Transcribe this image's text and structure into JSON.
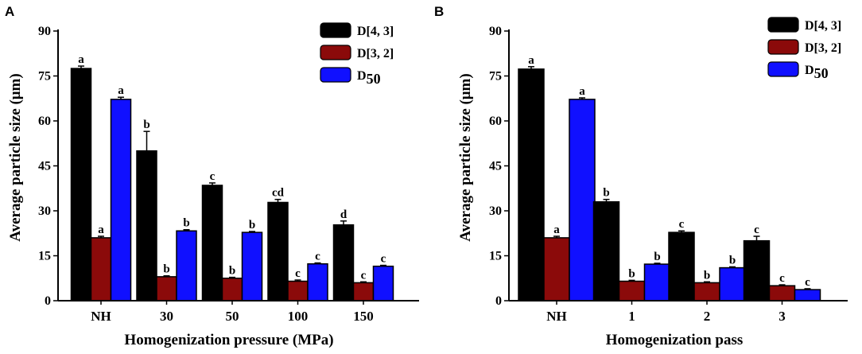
{
  "chart_data": [
    {
      "type": "bar",
      "panel": "A",
      "categories": [
        "NH",
        "30",
        "50",
        "100",
        "150"
      ],
      "series": [
        {
          "name": "D[4, 3]",
          "color": "#000000",
          "values": [
            77.5,
            50.0,
            38.5,
            32.8,
            25.3
          ],
          "errors": [
            0.8,
            6.5,
            0.8,
            1.0,
            1.3
          ],
          "letters": [
            "a",
            "b",
            "c",
            "cd",
            "d"
          ]
        },
        {
          "name": "D[3, 2]",
          "color": "#8b0a0a",
          "values": [
            21.0,
            8.0,
            7.5,
            6.5,
            6.0
          ],
          "errors": [
            0.5,
            0.3,
            0.3,
            0.4,
            0.3
          ],
          "letters": [
            "a",
            "b",
            "b",
            "c",
            "c"
          ]
        },
        {
          "name": "D50",
          "color": "#1010ff",
          "values": [
            67.2,
            23.3,
            22.8,
            12.3,
            11.5
          ],
          "errors": [
            0.7,
            0.4,
            0.3,
            0.3,
            0.3
          ],
          "letters": [
            "a",
            "b",
            "b",
            "c",
            "c"
          ]
        }
      ],
      "legend_names": [
        {
          "main": "D[4, 3]",
          "sub": ""
        },
        {
          "main": "D[3, 2]",
          "sub": ""
        },
        {
          "main": "D",
          "sub": "50"
        }
      ],
      "title": "",
      "xlabel": "Homogenization pressure (MPa)",
      "ylabel": "Average particle size (μm)",
      "ylim": [
        0,
        90
      ],
      "yticks": [
        "0",
        "15",
        "30",
        "45",
        "60",
        "75",
        "90"
      ],
      "legend_position": "top-right"
    },
    {
      "type": "bar",
      "panel": "B",
      "categories": [
        "NH",
        "1",
        "2",
        "3"
      ],
      "series": [
        {
          "name": "D[4, 3]",
          "color": "#000000",
          "values": [
            77.3,
            33.0,
            22.8,
            20.0
          ],
          "errors": [
            0.8,
            0.8,
            0.5,
            1.5
          ],
          "letters": [
            "a",
            "b",
            "c",
            "c"
          ]
        },
        {
          "name": "D[3, 2]",
          "color": "#8b0a0a",
          "values": [
            21.0,
            6.5,
            6.0,
            5.0
          ],
          "errors": [
            0.5,
            0.3,
            0.3,
            0.3
          ],
          "letters": [
            "a",
            "b",
            "b",
            "c"
          ]
        },
        {
          "name": "D50",
          "color": "#1010ff",
          "values": [
            67.2,
            12.2,
            11.0,
            3.7
          ],
          "errors": [
            0.5,
            0.3,
            0.3,
            0.3
          ],
          "letters": [
            "a",
            "b",
            "b",
            "c"
          ]
        }
      ],
      "legend_names": [
        {
          "main": "D[4, 3]",
          "sub": ""
        },
        {
          "main": "D[3, 2]",
          "sub": ""
        },
        {
          "main": "D",
          "sub": "50"
        }
      ],
      "title": "",
      "xlabel": "Homogenization pass",
      "ylabel": "Average particle size (μm)",
      "ylim": [
        0,
        90
      ],
      "yticks": [
        "0",
        "15",
        "30",
        "45",
        "60",
        "75",
        "90"
      ],
      "legend_position": "top-right"
    }
  ]
}
